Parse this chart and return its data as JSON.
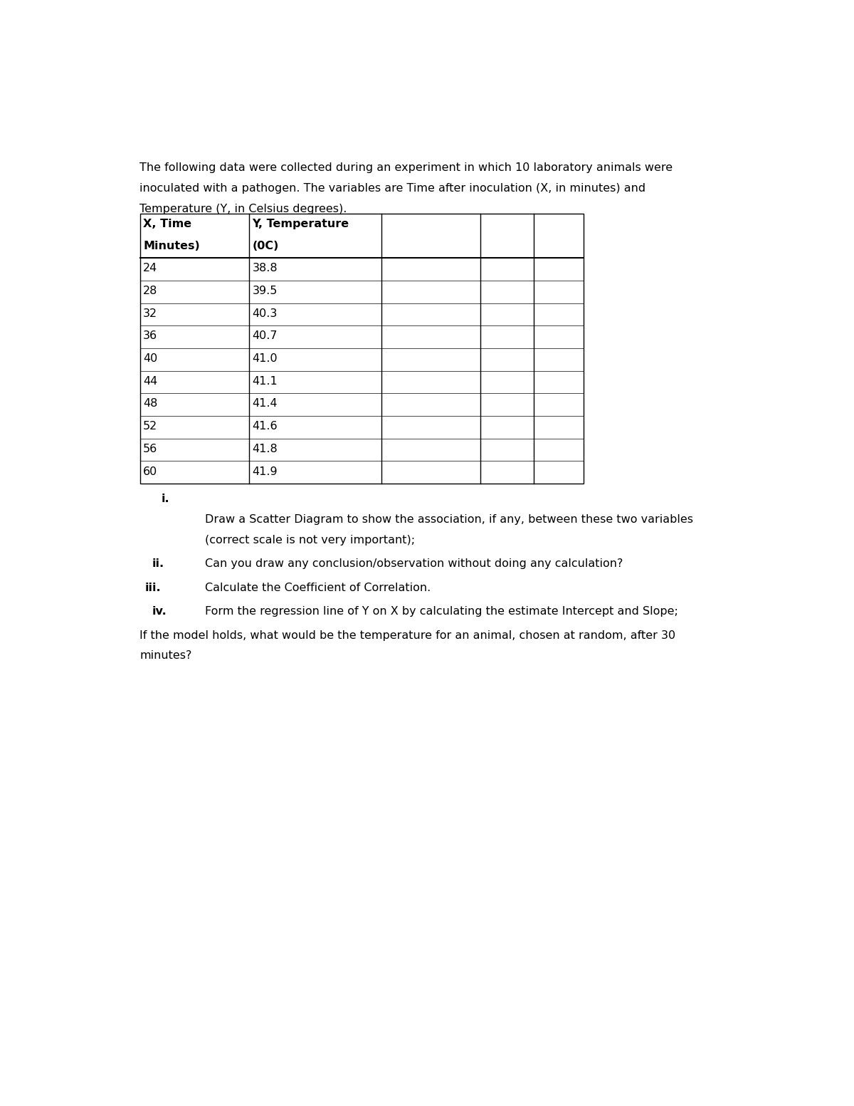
{
  "intro_text_line1": "The following data were collected during an experiment in which 10 laboratory animals were",
  "intro_text_line2": "inoculated with a pathogen. The variables are Time after inoculation (X, in minutes) and",
  "intro_text_line3": "Temperature (Y, in Celsius degrees).",
  "col1_header_line1": "X, Time",
  "col1_header_line2": "Minutes)",
  "col2_header_line1": "Y, Temperature",
  "col2_header_line2": "(0C)",
  "x_data": [
    24,
    28,
    32,
    36,
    40,
    44,
    48,
    52,
    56,
    60
  ],
  "y_data": [
    38.8,
    39.5,
    40.3,
    40.7,
    41.0,
    41.1,
    41.4,
    41.6,
    41.8,
    41.9
  ],
  "bg_color": "#ffffff",
  "text_color": "#000000",
  "font_size": 11.5,
  "table_font_size": 11.5,
  "q_i_label": "i.",
  "q_i_line1": "Draw a Scatter Diagram to show the association, if any, between these two variables",
  "q_i_line2": "(correct scale is not very important);",
  "q_ii_label": "ii.",
  "q_ii_text": "Can you draw any conclusion/observation without doing any calculation?",
  "q_iii_label": "iii.",
  "q_iii_text": "Calculate the Coefficient of Correlation.",
  "q_iv_label": "iv.",
  "q_iv_text": "Form the regression line of Y on X by calculating the estimate Intercept and Slope;",
  "final_line1": "If the model holds, what would be the temperature for an animal, chosen at random, after 30",
  "final_line2": "minutes?"
}
